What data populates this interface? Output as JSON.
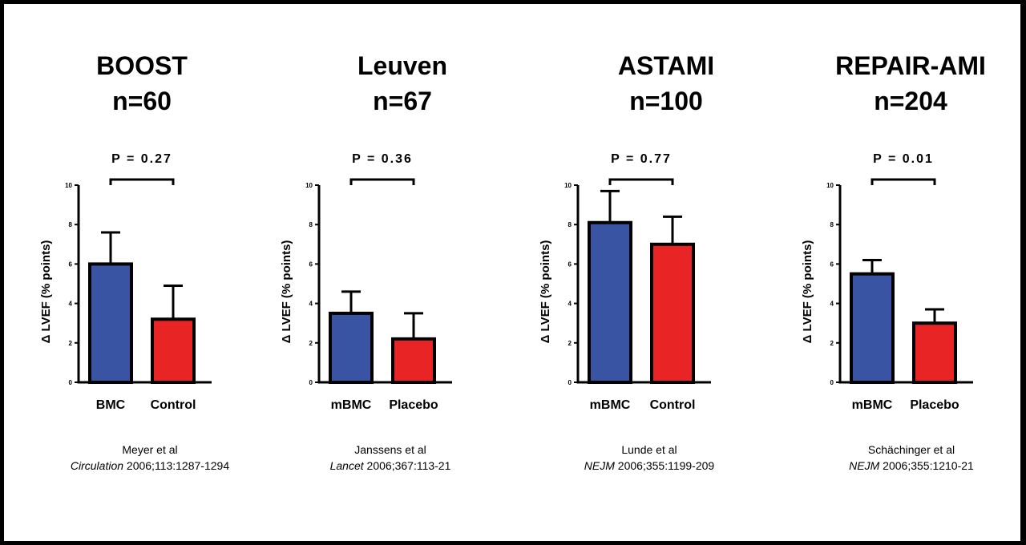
{
  "colors": {
    "treatment": "#3a54a4",
    "control": "#e82424",
    "axis": "#000000"
  },
  "chart_data": [
    {
      "type": "bar",
      "title": "BOOST",
      "subtitle": "n=60",
      "p_value": "P = 0.27",
      "ylabel": "Δ LVEF (% points)",
      "ylim": [
        0,
        10
      ],
      "yticks": [
        "0",
        "2",
        "4",
        "6",
        "8",
        "10"
      ],
      "categories": [
        "BMC",
        "Control"
      ],
      "values": [
        6.0,
        3.2
      ],
      "errors": [
        1.6,
        1.7
      ],
      "citation": {
        "authors": "Meyer et al",
        "journal": "Circulation",
        "details": " 2006;113:1287-1294"
      }
    },
    {
      "type": "bar",
      "title": "Leuven",
      "subtitle": "n=67",
      "p_value": "P = 0.36",
      "ylabel": "Δ LVEF (% points)",
      "ylim": [
        0,
        10
      ],
      "yticks": [
        "0",
        "2",
        "4",
        "6",
        "8",
        "10"
      ],
      "categories": [
        "mBMC",
        "Placebo"
      ],
      "values": [
        3.5,
        2.2
      ],
      "errors": [
        1.1,
        1.3
      ],
      "citation": {
        "authors": "Janssens et al",
        "journal": "Lancet",
        "details": " 2006;367:113-21"
      }
    },
    {
      "type": "bar",
      "title": "ASTAMI",
      "subtitle": "n=100",
      "p_value": "P = 0.77",
      "ylabel": "Δ LVEF (% points)",
      "ylim": [
        0,
        10
      ],
      "yticks": [
        "0",
        "2",
        "4",
        "6",
        "8",
        "10"
      ],
      "categories": [
        "mBMC",
        "Control"
      ],
      "values": [
        8.1,
        7.0
      ],
      "errors": [
        1.6,
        1.4
      ],
      "citation": {
        "authors": "Lunde et al",
        "journal": "NEJM",
        "details": " 2006;355:1199-209"
      }
    },
    {
      "type": "bar",
      "title": "REPAIR-AMI",
      "subtitle": "n=204",
      "p_value": "P = 0.01",
      "ylabel": "Δ LVEF (% points)",
      "ylim": [
        0,
        10
      ],
      "yticks": [
        "0",
        "2",
        "4",
        "6",
        "8",
        "10"
      ],
      "categories": [
        "mBMC",
        "Placebo"
      ],
      "values": [
        5.5,
        3.0
      ],
      "errors": [
        0.7,
        0.7
      ],
      "citation": {
        "authors": "Schächinger et al",
        "journal": "NEJM",
        "details": " 2006;355:1210-21"
      }
    }
  ]
}
